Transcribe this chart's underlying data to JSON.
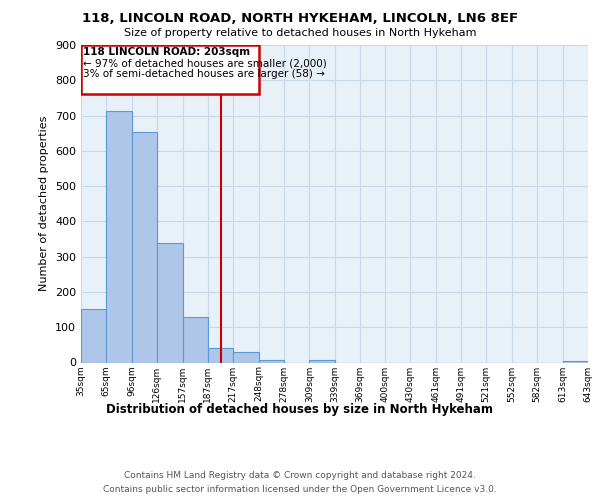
{
  "title": "118, LINCOLN ROAD, NORTH HYKEHAM, LINCOLN, LN6 8EF",
  "subtitle": "Size of property relative to detached houses in North Hykeham",
  "bar_edges": [
    35,
    65,
    96,
    126,
    157,
    187,
    217,
    248,
    278,
    309,
    339,
    369,
    400,
    430,
    461,
    491,
    521,
    552,
    582,
    613,
    643
  ],
  "bar_heights": [
    152,
    714,
    652,
    339,
    130,
    42,
    30,
    8,
    0,
    6,
    0,
    0,
    0,
    0,
    0,
    0,
    0,
    0,
    0,
    5
  ],
  "bar_color": "#aec6e8",
  "bar_edge_color": "#5b9bd5",
  "vline_x": 203,
  "vline_color": "#cc0000",
  "xlabel": "Distribution of detached houses by size in North Hykeham",
  "ylabel": "Number of detached properties",
  "ylim": [
    0,
    900
  ],
  "yticks": [
    0,
    100,
    200,
    300,
    400,
    500,
    600,
    700,
    800,
    900
  ],
  "annotation_title": "118 LINCOLN ROAD: 203sqm",
  "annotation_line1": "← 97% of detached houses are smaller (2,000)",
  "annotation_line2": "3% of semi-detached houses are larger (58) →",
  "annotation_box_color": "#cc0000",
  "grid_color": "#c8d8e8",
  "background_color": "#e8f0f8",
  "footer_line1": "Contains HM Land Registry data © Crown copyright and database right 2024.",
  "footer_line2": "Contains public sector information licensed under the Open Government Licence v3.0.",
  "x_tick_labels": [
    "35sqm",
    "65sqm",
    "96sqm",
    "126sqm",
    "157sqm",
    "187sqm",
    "217sqm",
    "248sqm",
    "278sqm",
    "309sqm",
    "339sqm",
    "369sqm",
    "400sqm",
    "430sqm",
    "461sqm",
    "491sqm",
    "521sqm",
    "552sqm",
    "582sqm",
    "613sqm",
    "643sqm"
  ]
}
